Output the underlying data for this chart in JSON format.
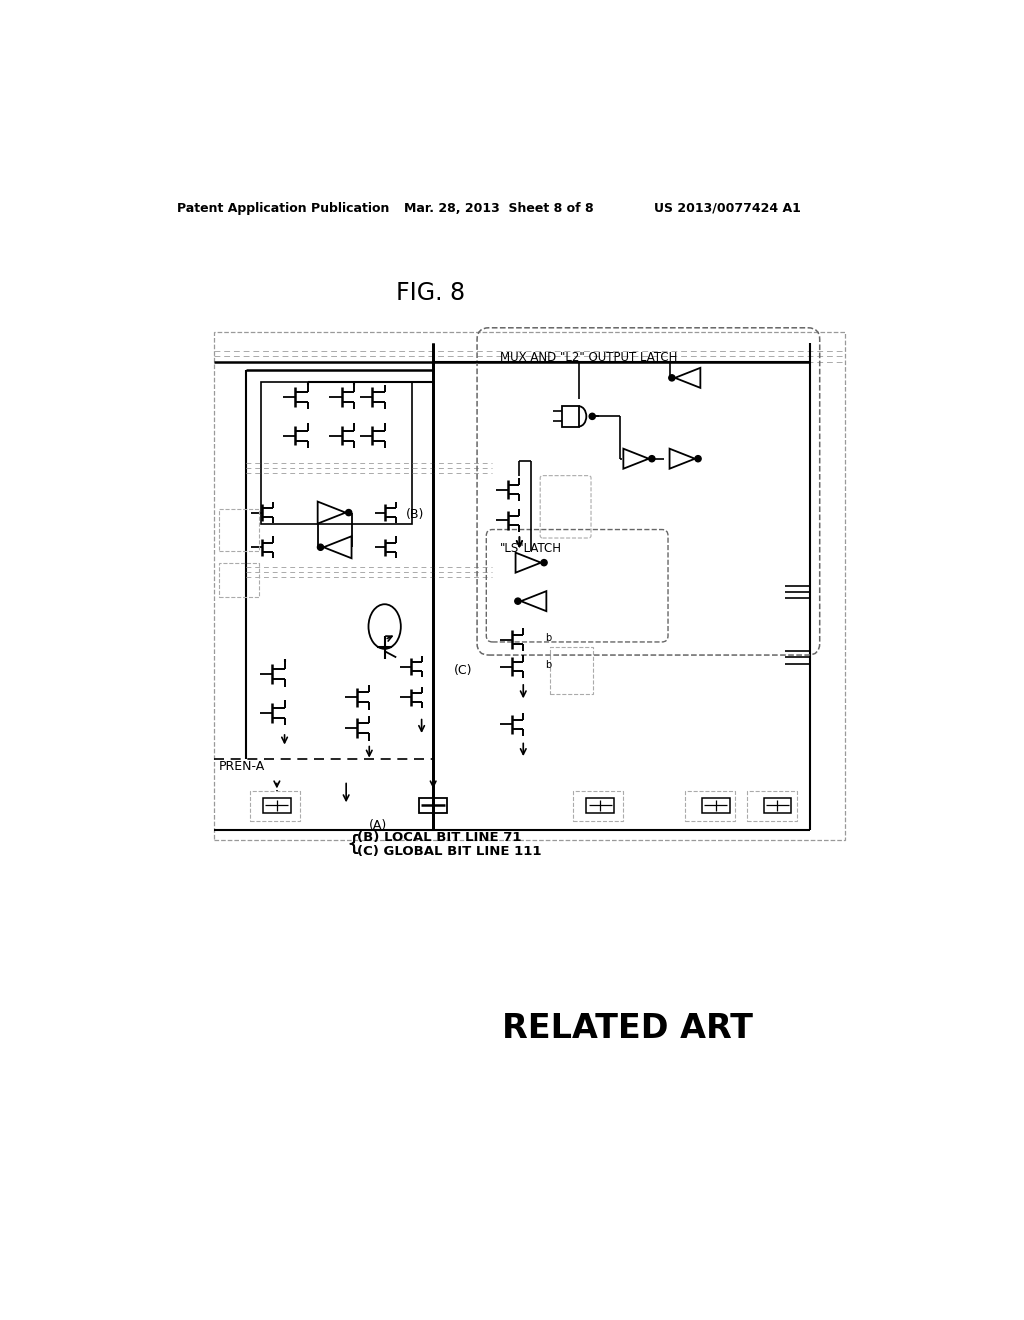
{
  "title": "FIG. 8",
  "header_left": "Patent Application Publication",
  "header_center": "Mar. 28, 2013  Sheet 8 of 8",
  "header_right": "US 2013/0077424 A1",
  "footer_text": "RELATED ART",
  "legend_b": "(B) LOCAL BIT LINE 71",
  "legend_c": "(C) GLOBAL BIT LINE 111",
  "label_a": "(A)",
  "label_b": "(B)",
  "label_c": "(C)",
  "label_pren": "PREN-A",
  "label_mux": "MUX AND \"L2\" OUTPUT LATCH",
  "label_ls": "\"LS\"LATCH",
  "bg_color": "#ffffff",
  "line_color": "#000000",
  "dashed_color": "#666666"
}
